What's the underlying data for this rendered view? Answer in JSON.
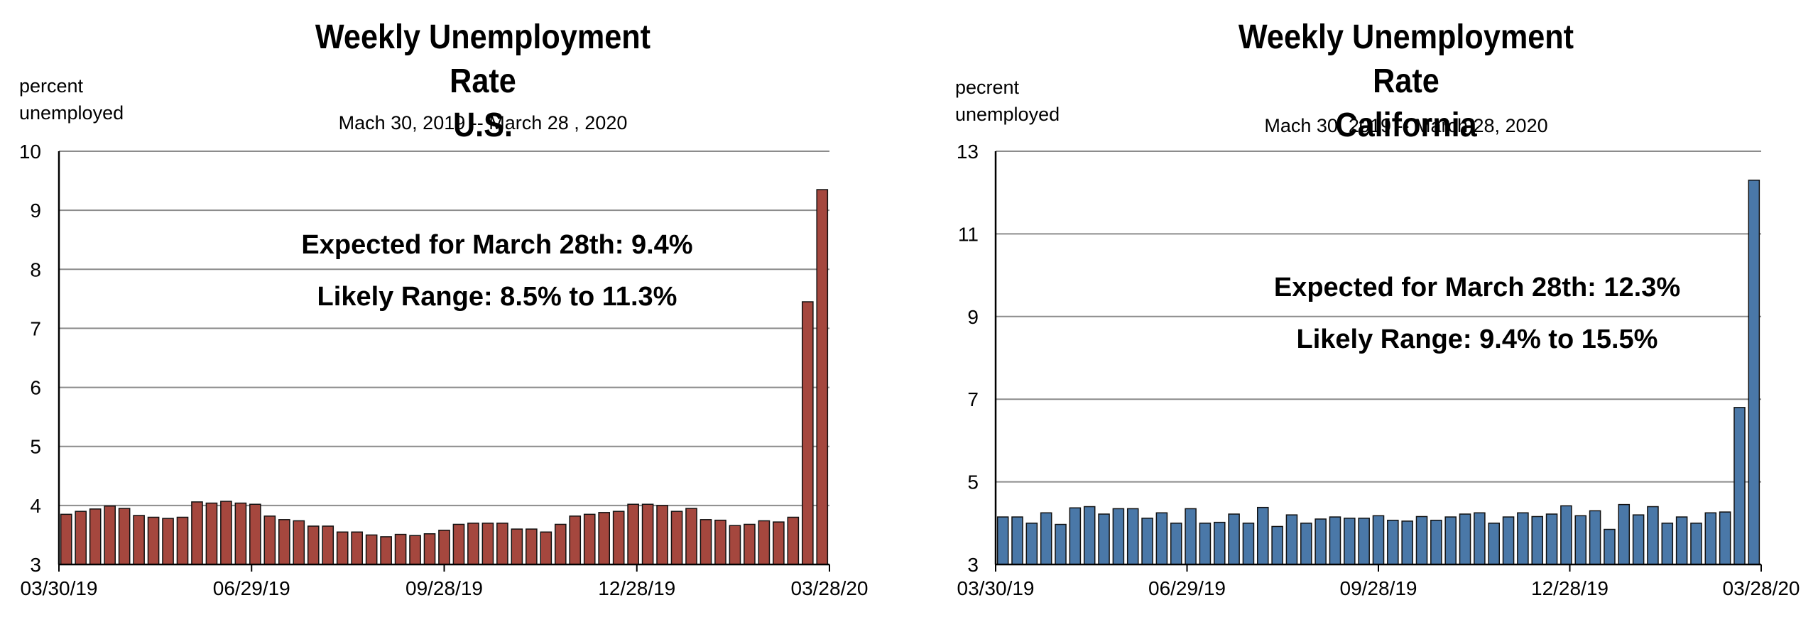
{
  "chart_data": [
    {
      "type": "bar",
      "title": "Weekly Unemployment Rate",
      "title_line2": "U.S.",
      "subtitle": "Mach 30, 2019 -- March 28 , 2020",
      "ylabel_line1": "percent",
      "ylabel_line2": "unemployed",
      "ylim": [
        3,
        10
      ],
      "yticks": [
        "3",
        "4",
        "5",
        "6",
        "7",
        "8",
        "9",
        "10"
      ],
      "xtick_labels": [
        "03/30/19",
        "06/29/19",
        "09/28/19",
        "12/28/19",
        "03/28/20"
      ],
      "bar_color": "#A5473E",
      "grid": true,
      "annotations": [
        "Expected for March 28th: 9.4%",
        "Likely Range: 8.5% to 11.3%"
      ],
      "values": [
        3.85,
        3.9,
        3.94,
        3.99,
        3.95,
        3.83,
        3.8,
        3.78,
        3.8,
        4.06,
        4.04,
        4.07,
        4.04,
        4.02,
        3.82,
        3.76,
        3.74,
        3.65,
        3.65,
        3.55,
        3.55,
        3.5,
        3.47,
        3.51,
        3.49,
        3.52,
        3.58,
        3.68,
        3.7,
        3.7,
        3.7,
        3.6,
        3.6,
        3.55,
        3.68,
        3.82,
        3.85,
        3.88,
        3.9,
        4.02,
        4.02,
        4.0,
        3.9,
        3.95,
        3.76,
        3.75,
        3.66,
        3.68,
        3.74,
        3.72,
        3.8,
        7.45,
        9.35
      ]
    },
    {
      "type": "bar",
      "title": "Weekly Unemployment Rate",
      "title_line2": "California",
      "subtitle": "Mach 30, 2019 -- March 28, 2020",
      "ylabel_line1": "pecrent",
      "ylabel_line2": "unemployed",
      "ylim": [
        3,
        13
      ],
      "yticks": [
        "3",
        "5",
        "7",
        "9",
        "11",
        "13"
      ],
      "xtick_labels": [
        "03/30/19",
        "06/29/19",
        "09/28/19",
        "12/28/19",
        "03/28/20"
      ],
      "bar_color": "#4A78A8",
      "grid": true,
      "annotations": [
        "Expected for March 28th: 12.3%",
        "Likely Range: 9.4% to 15.5%"
      ],
      "values": [
        4.15,
        4.15,
        4.0,
        4.25,
        3.97,
        4.37,
        4.4,
        4.22,
        4.35,
        4.35,
        4.12,
        4.25,
        4.0,
        4.35,
        4.0,
        4.02,
        4.22,
        4.0,
        4.38,
        3.92,
        4.2,
        4.0,
        4.1,
        4.15,
        4.12,
        4.12,
        4.18,
        4.07,
        4.05,
        4.16,
        4.07,
        4.15,
        4.22,
        4.25,
        4.0,
        4.15,
        4.25,
        4.16,
        4.22,
        4.42,
        4.18,
        4.3,
        3.85,
        4.45,
        4.2,
        4.4,
        4.0,
        4.15,
        4.0,
        4.25,
        4.27,
        6.8,
        12.3
      ]
    }
  ]
}
